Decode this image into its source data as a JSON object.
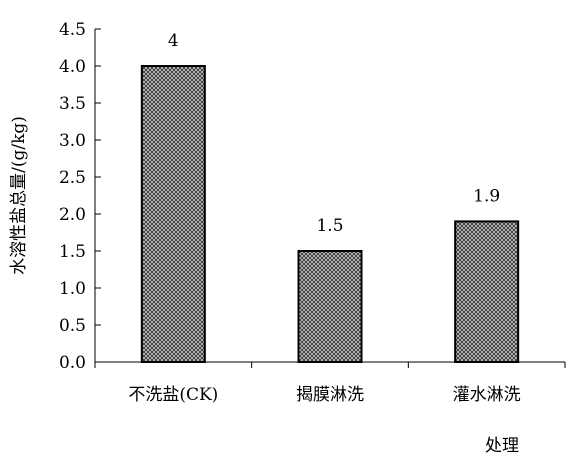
{
  "chart_data": {
    "type": "bar",
    "categories": [
      "不洗盐(CK)",
      "揭膜淋洗",
      "灌水淋洗"
    ],
    "values": [
      4,
      1.5,
      1.9
    ],
    "value_labels": [
      "4",
      "1.5",
      "1.9"
    ],
    "title": "",
    "xlabel": "处理",
    "ylabel": "水溶性盐总量/(g/kg)",
    "ylim": [
      0,
      4.5
    ],
    "yticks": [
      "0.0",
      "0.5",
      "1.0",
      "1.5",
      "2.0",
      "2.5",
      "3.0",
      "3.5",
      "4.0",
      "4.5"
    ],
    "grid": false,
    "legend": "none",
    "bar_pattern": "crosshatch",
    "colors": {
      "bar_fill": "#7a7a7a",
      "bar_stroke": "#000000",
      "axis": "#000000"
    }
  }
}
